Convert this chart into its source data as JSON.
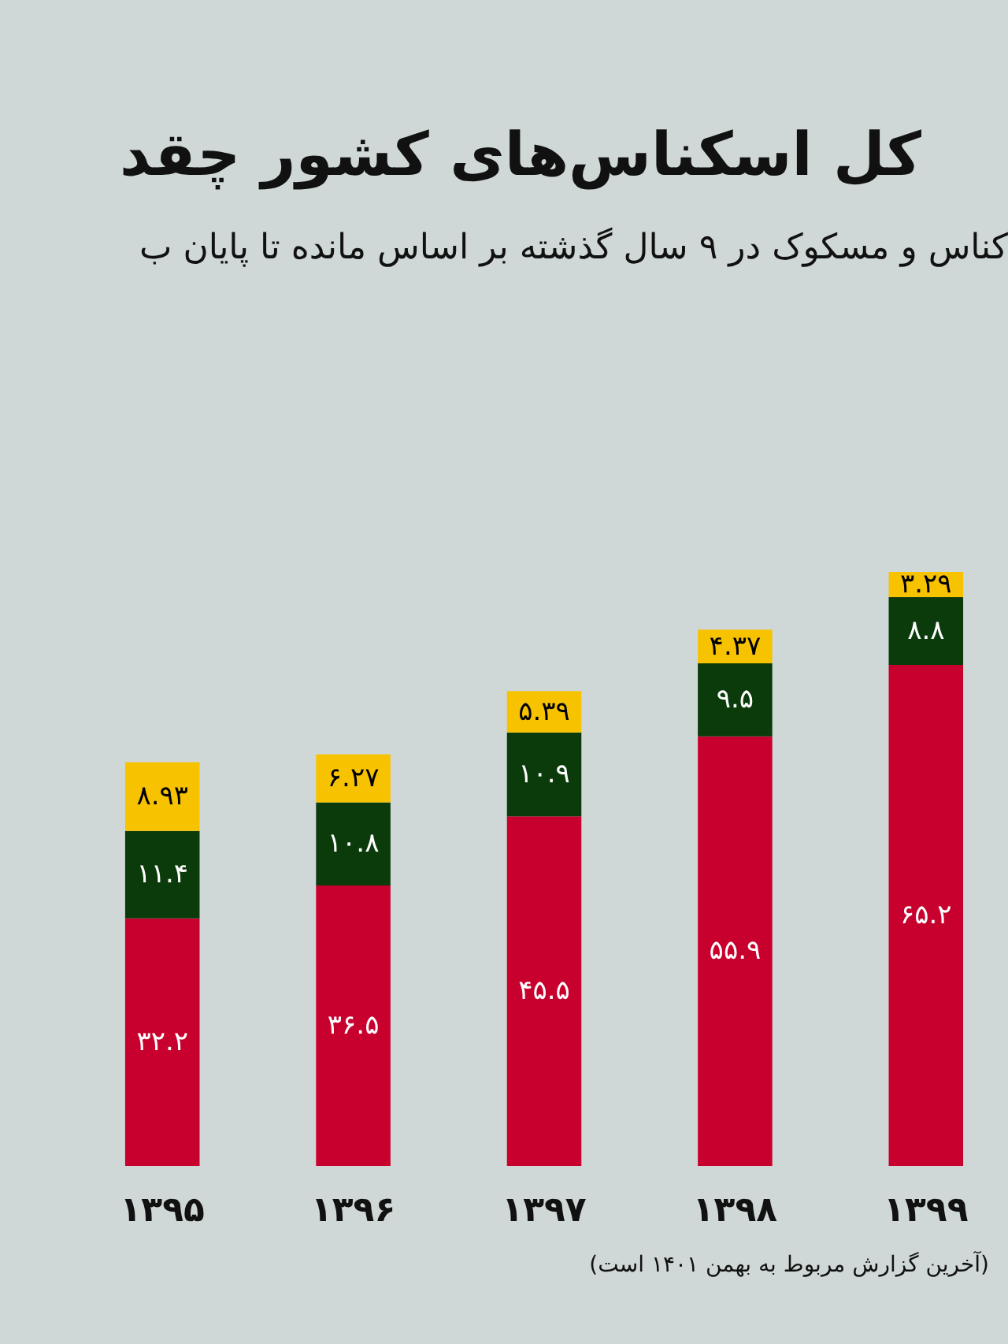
{
  "chart_data": {
    "type": "bar",
    "stacked": true,
    "title": "کل اسکناس‌های کشور چقد",
    "subtitle": "کناس و مسکوک در ۹ سال گذشته بر اساس مانده تا پایان ب",
    "annotations": [
      "(آخرین گزارش مربوط به بهمن ۱۴۰۱ است)"
    ],
    "categories": [
      "۱۳۹۵",
      "۱۳۹۶",
      "۱۳۹۷",
      "۱۳۹۸",
      "۱۳۹۹"
    ],
    "series": [
      {
        "color": "#c8002d",
        "values": [
          32.2,
          36.5,
          45.5,
          55.9,
          65.2
        ],
        "value_labels": [
          "۳۲.۲",
          "۳۶.۵",
          "۴۵.۵",
          "۵۵.۹",
          "۶۵.۲"
        ]
      },
      {
        "color": "#0b3b0b",
        "values": [
          11.4,
          10.8,
          10.9,
          9.5,
          8.8
        ],
        "value_labels": [
          "۱۱.۴",
          "۱۰.۸",
          "۱۰.۹",
          "۹.۵",
          "۸.۸"
        ]
      },
      {
        "color": "#f7c300",
        "values": [
          8.93,
          6.27,
          5.39,
          4.37,
          3.29
        ],
        "value_labels": [
          "۸.۹۳",
          "۶.۲۷",
          "۵.۳۹",
          "۴.۳۷",
          "۳.۲۹"
        ]
      }
    ]
  }
}
